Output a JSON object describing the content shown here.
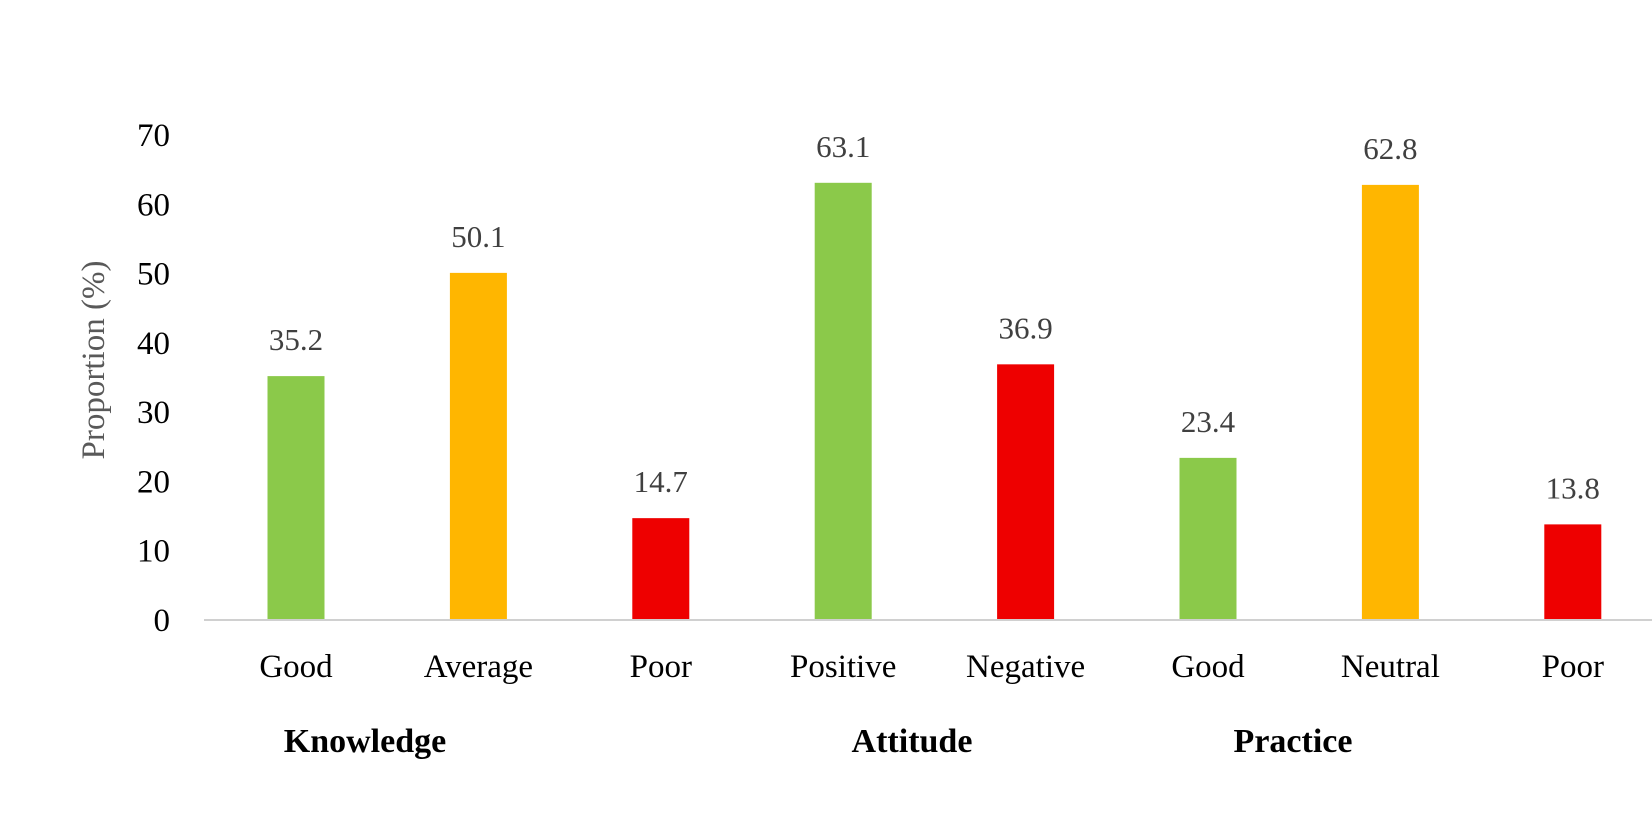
{
  "chart_data": {
    "type": "bar",
    "title": "",
    "xlabel": "",
    "ylabel": "Proportion (%)",
    "ylim": [
      0,
      70
    ],
    "yticks": [
      0,
      10,
      20,
      30,
      40,
      50,
      60,
      70
    ],
    "grid": false,
    "legend": "none",
    "categories": [
      "Good",
      "Average",
      "Poor",
      "Positive",
      "Negative",
      "Good",
      "Neutral",
      "Poor"
    ],
    "values": [
      35.2,
      50.1,
      14.7,
      63.1,
      36.9,
      23.4,
      62.8,
      13.8
    ],
    "data_labels": [
      "35.2",
      "50.1",
      "14.7",
      "63.1",
      "36.9",
      "23.4",
      "62.8",
      "13.8"
    ],
    "bar_colors": [
      "#8BC94A",
      "#FFB600",
      "#EE0000",
      "#8BC94A",
      "#EE0000",
      "#8BC94A",
      "#FFB600",
      "#EE0000"
    ],
    "groups": [
      {
        "label": "Knowledge",
        "members": [
          0,
          1,
          2
        ]
      },
      {
        "label": "Attitude",
        "members": [
          3,
          4
        ]
      },
      {
        "label": "Practice",
        "members": [
          5,
          6,
          7
        ]
      }
    ],
    "axis_color": "#D0D0D0"
  }
}
